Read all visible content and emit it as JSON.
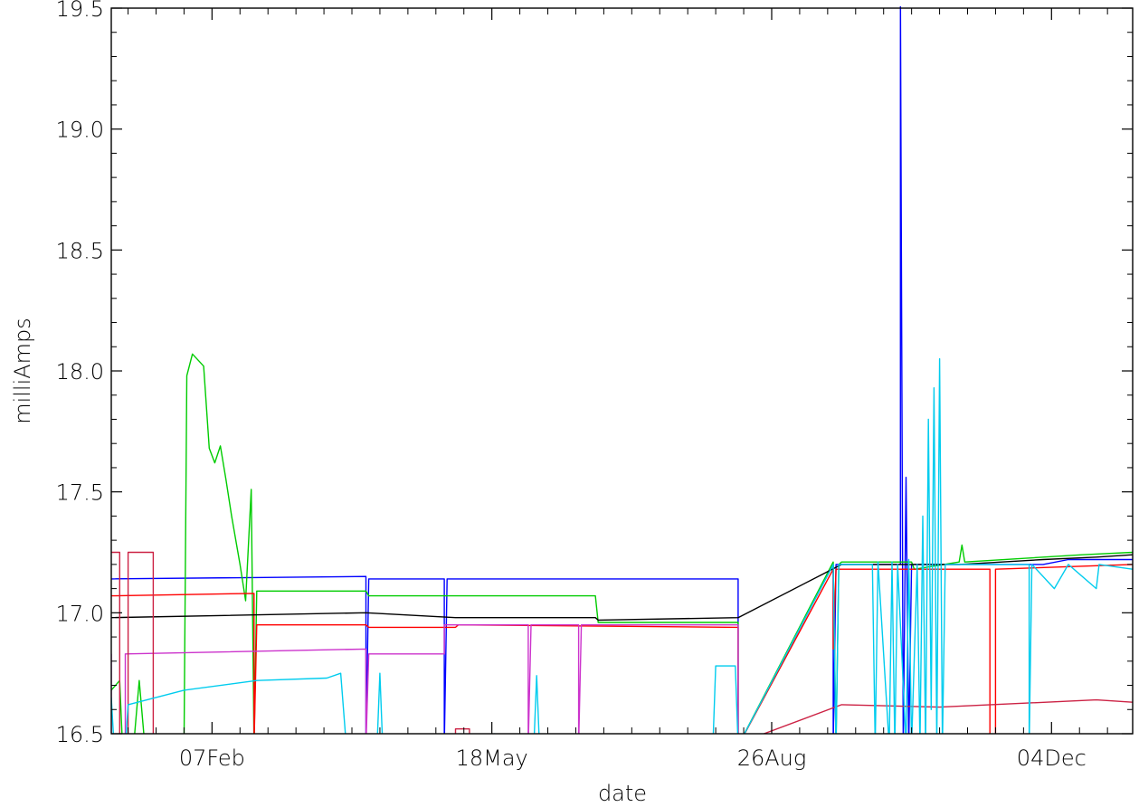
{
  "chart_data": {
    "type": "line",
    "title": "",
    "xlabel": "date",
    "ylabel": "milliAmps",
    "xlim": [
      "2023-01-02",
      "2024-01-02"
    ],
    "ylim": [
      16.5,
      19.5
    ],
    "x_ticks": [
      {
        "date": "2023-02-07",
        "label": "07Feb"
      },
      {
        "date": "2023-05-18",
        "label": "18May"
      },
      {
        "date": "2023-08-26",
        "label": "26Aug"
      },
      {
        "date": "2023-12-04",
        "label": "04Dec"
      }
    ],
    "y_ticks": [
      {
        "value": 16.5,
        "label": "16.5"
      },
      {
        "value": 17.0,
        "label": "17.0"
      },
      {
        "value": 17.5,
        "label": "17.5"
      },
      {
        "value": 18.0,
        "label": "18.0"
      },
      {
        "value": 18.5,
        "label": "18.5"
      },
      {
        "value": 19.0,
        "label": "19.0"
      },
      {
        "value": 19.5,
        "label": "19.5"
      }
    ],
    "grid": false,
    "series": [
      {
        "color": "#0000ff",
        "points": [
          [
            "2023-01-02",
            17.14
          ],
          [
            "2023-04-03",
            17.15
          ],
          [
            "2023-04-03",
            16.45
          ],
          [
            "2023-04-04",
            17.14
          ],
          [
            "2023-05-01",
            17.14
          ],
          [
            "2023-05-01",
            16.45
          ],
          [
            "2023-05-02",
            17.14
          ],
          [
            "2023-08-14",
            17.14
          ],
          [
            "2023-08-14",
            16.45
          ],
          [
            "2023-09-17",
            17.2
          ],
          [
            "2023-09-17",
            16.45
          ],
          [
            "2023-09-18",
            17.2
          ],
          [
            "2023-10-11",
            17.2
          ],
          [
            "2023-10-11",
            19.55
          ],
          [
            "2023-10-12",
            16.45
          ],
          [
            "2023-10-13",
            17.56
          ],
          [
            "2023-10-14",
            16.45
          ],
          [
            "2023-10-15",
            17.2
          ],
          [
            "2023-12-01",
            17.2
          ],
          [
            "2023-12-10",
            17.22
          ],
          [
            "2024-01-02",
            17.22
          ]
        ]
      },
      {
        "color": "#00cc00",
        "points": [
          [
            "2023-01-02",
            16.68
          ],
          [
            "2023-01-05",
            16.72
          ],
          [
            "2023-01-06",
            16.45
          ],
          [
            "2023-01-10",
            16.45
          ],
          [
            "2023-01-12",
            16.72
          ],
          [
            "2023-01-14",
            16.45
          ],
          [
            "2023-01-28",
            16.45
          ],
          [
            "2023-01-29",
            17.98
          ],
          [
            "2023-01-31",
            18.07
          ],
          [
            "2023-02-04",
            18.02
          ],
          [
            "2023-02-06",
            17.68
          ],
          [
            "2023-02-08",
            17.62
          ],
          [
            "2023-02-10",
            17.69
          ],
          [
            "2023-02-12",
            17.55
          ],
          [
            "2023-02-14",
            17.4
          ],
          [
            "2023-02-17",
            17.2
          ],
          [
            "2023-02-19",
            17.05
          ],
          [
            "2023-02-21",
            17.51
          ],
          [
            "2023-02-22",
            16.45
          ],
          [
            "2023-02-23",
            17.09
          ],
          [
            "2023-04-03",
            17.09
          ],
          [
            "2023-04-04",
            17.07
          ],
          [
            "2023-06-24",
            17.07
          ],
          [
            "2023-06-25",
            16.96
          ],
          [
            "2023-08-14",
            16.96
          ],
          [
            "2023-08-14",
            16.45
          ],
          [
            "2023-09-17",
            17.21
          ],
          [
            "2023-09-18",
            16.45
          ],
          [
            "2023-09-19",
            17.2
          ],
          [
            "2023-09-20",
            17.21
          ],
          [
            "2023-10-15",
            17.21
          ],
          [
            "2023-10-16",
            17.18
          ],
          [
            "2023-11-01",
            17.21
          ],
          [
            "2023-11-02",
            17.28
          ],
          [
            "2023-11-03",
            17.21
          ],
          [
            "2023-12-15",
            17.24
          ],
          [
            "2024-01-02",
            17.25
          ]
        ]
      },
      {
        "color": "#ff0000",
        "points": [
          [
            "2023-01-02",
            17.07
          ],
          [
            "2023-02-22",
            17.08
          ],
          [
            "2023-02-22",
            16.45
          ],
          [
            "2023-02-23",
            16.95
          ],
          [
            "2023-04-03",
            16.95
          ],
          [
            "2023-04-04",
            16.94
          ],
          [
            "2023-05-05",
            16.94
          ],
          [
            "2023-05-06",
            16.95
          ],
          [
            "2023-08-14",
            16.94
          ],
          [
            "2023-08-14",
            16.45
          ],
          [
            "2023-09-17",
            17.18
          ],
          [
            "2023-09-17",
            16.85
          ],
          [
            "2023-09-18",
            17.18
          ],
          [
            "2023-11-12",
            17.18
          ],
          [
            "2023-11-12",
            16.45
          ],
          [
            "2023-11-14",
            16.45
          ],
          [
            "2023-11-14",
            17.18
          ],
          [
            "2024-01-02",
            17.2
          ]
        ]
      },
      {
        "color": "#000000",
        "points": [
          [
            "2023-01-02",
            16.98
          ],
          [
            "2023-04-03",
            17.0
          ],
          [
            "2023-05-05",
            16.98
          ],
          [
            "2023-06-24",
            16.98
          ],
          [
            "2023-06-25",
            16.97
          ],
          [
            "2023-08-14",
            16.98
          ],
          [
            "2023-09-20",
            17.2
          ],
          [
            "2023-11-01",
            17.2
          ],
          [
            "2023-12-01",
            17.22
          ],
          [
            "2023-12-20",
            17.23
          ],
          [
            "2024-01-02",
            17.24
          ]
        ]
      },
      {
        "color": "#cc33cc",
        "points": [
          [
            "2023-01-02",
            16.83
          ],
          [
            "2023-01-02",
            16.45
          ],
          [
            "2023-01-07",
            16.45
          ],
          [
            "2023-01-07",
            16.83
          ],
          [
            "2023-04-03",
            16.85
          ],
          [
            "2023-04-03",
            16.45
          ],
          [
            "2023-04-04",
            16.83
          ],
          [
            "2023-05-01",
            16.83
          ],
          [
            "2023-05-01",
            16.95
          ],
          [
            "2023-05-31",
            16.95
          ],
          [
            "2023-05-31",
            16.45
          ],
          [
            "2023-06-01",
            16.95
          ],
          [
            "2023-06-18",
            16.95
          ],
          [
            "2023-06-18",
            16.45
          ],
          [
            "2023-06-19",
            16.95
          ],
          [
            "2023-08-14",
            16.95
          ],
          [
            "2023-08-14",
            16.45
          ]
        ]
      },
      {
        "color": "#cc2244",
        "points": [
          [
            "2023-01-02",
            17.25
          ],
          [
            "2023-01-05",
            17.25
          ],
          [
            "2023-01-05",
            16.45
          ],
          [
            "2023-01-08",
            16.45
          ],
          [
            "2023-01-08",
            17.25
          ],
          [
            "2023-01-17",
            17.25
          ],
          [
            "2023-01-17",
            16.45
          ],
          [
            "2023-05-05",
            16.45
          ],
          [
            "2023-05-05",
            16.52
          ],
          [
            "2023-05-10",
            16.52
          ],
          [
            "2023-05-10",
            16.46
          ],
          [
            "2023-08-14",
            16.46
          ],
          [
            "2023-09-20",
            16.62
          ],
          [
            "2023-10-25",
            16.61
          ],
          [
            "2023-12-20",
            16.64
          ],
          [
            "2024-01-02",
            16.63
          ]
        ]
      },
      {
        "color": "#00ccee",
        "points": [
          [
            "2023-01-02",
            16.65
          ],
          [
            "2023-01-03",
            16.45
          ],
          [
            "2023-01-07",
            16.45
          ],
          [
            "2023-01-08",
            16.62
          ],
          [
            "2023-01-28",
            16.68
          ],
          [
            "2023-02-23",
            16.72
          ],
          [
            "2023-03-20",
            16.73
          ],
          [
            "2023-03-25",
            16.75
          ],
          [
            "2023-03-27",
            16.45
          ],
          [
            "2023-04-07",
            16.45
          ],
          [
            "2023-04-08",
            16.75
          ],
          [
            "2023-04-09",
            16.45
          ],
          [
            "2023-05-18",
            16.45
          ],
          [
            "2023-05-19",
            16.5
          ],
          [
            "2023-05-20",
            16.45
          ],
          [
            "2023-06-02",
            16.45
          ],
          [
            "2023-06-03",
            16.74
          ],
          [
            "2023-06-04",
            16.45
          ],
          [
            "2023-08-05",
            16.45
          ],
          [
            "2023-08-06",
            16.78
          ],
          [
            "2023-08-13",
            16.78
          ],
          [
            "2023-08-14",
            16.45
          ],
          [
            "2023-09-17",
            17.2
          ],
          [
            "2023-09-18",
            16.45
          ],
          [
            "2023-09-19",
            17.2
          ],
          [
            "2023-10-01",
            17.2
          ],
          [
            "2023-10-02",
            16.45
          ],
          [
            "2023-10-03",
            17.21
          ],
          [
            "2023-10-07",
            16.45
          ],
          [
            "2023-10-08",
            17.21
          ],
          [
            "2023-10-09",
            16.45
          ],
          [
            "2023-10-10",
            17.2
          ],
          [
            "2023-10-13",
            16.45
          ],
          [
            "2023-10-14",
            17.22
          ],
          [
            "2023-10-15",
            16.45
          ],
          [
            "2023-10-17",
            17.2
          ],
          [
            "2023-10-18",
            16.45
          ],
          [
            "2023-10-19",
            17.4
          ],
          [
            "2023-10-20",
            16.45
          ],
          [
            "2023-10-21",
            17.8
          ],
          [
            "2023-10-22",
            16.6
          ],
          [
            "2023-10-23",
            17.93
          ],
          [
            "2023-10-24",
            16.45
          ],
          [
            "2023-10-25",
            18.05
          ],
          [
            "2023-10-26",
            16.45
          ],
          [
            "2023-10-27",
            17.2
          ],
          [
            "2023-11-26",
            17.2
          ],
          [
            "2023-11-26",
            16.45
          ],
          [
            "2023-11-27",
            17.2
          ],
          [
            "2023-12-05",
            17.1
          ],
          [
            "2023-12-10",
            17.2
          ],
          [
            "2023-12-20",
            17.1
          ],
          [
            "2023-12-21",
            17.2
          ],
          [
            "2024-01-02",
            17.18
          ]
        ]
      }
    ]
  }
}
